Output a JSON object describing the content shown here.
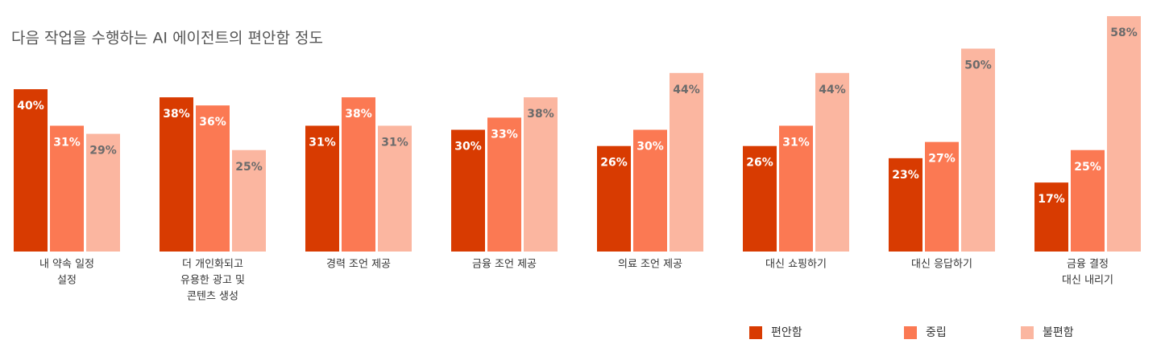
{
  "chart_data": {
    "type": "bar",
    "title": "다음 작업을 수행하는 AI 에이전트의 편안함 정도",
    "categories": [
      [
        "내 약속 일정",
        "설정"
      ],
      [
        "더 개인화되고",
        "유용한 광고 및",
        "콘텐츠 생성"
      ],
      [
        "경력 조언 제공"
      ],
      [
        "금융 조언 제공"
      ],
      [
        "의료 조언 제공"
      ],
      [
        "대신 쇼핑하기"
      ],
      [
        "대신 응답하기"
      ],
      [
        "금융 결정",
        "대신 내리기"
      ]
    ],
    "series": [
      {
        "name": "편안함",
        "color": "#d83b01",
        "values": [
          40,
          38,
          31,
          30,
          26,
          26,
          23,
          17
        ],
        "value_labels": [
          "40%",
          "38%",
          "31%",
          "30%",
          "26%",
          "26%",
          "23%",
          "17%"
        ]
      },
      {
        "name": "중립",
        "color": "#fb7953",
        "values": [
          31,
          36,
          38,
          33,
          30,
          31,
          27,
          25
        ],
        "value_labels": [
          "31%",
          "36%",
          "38%",
          "33%",
          "30%",
          "31%",
          "27%",
          "25%"
        ]
      },
      {
        "name": "불편함",
        "color": "#fbb6a0",
        "values": [
          29,
          25,
          31,
          38,
          44,
          44,
          50,
          58
        ],
        "value_labels": [
          "29%",
          "25%",
          "31%",
          "38%",
          "44%",
          "44%",
          "50%",
          "58%"
        ]
      }
    ]
  }
}
